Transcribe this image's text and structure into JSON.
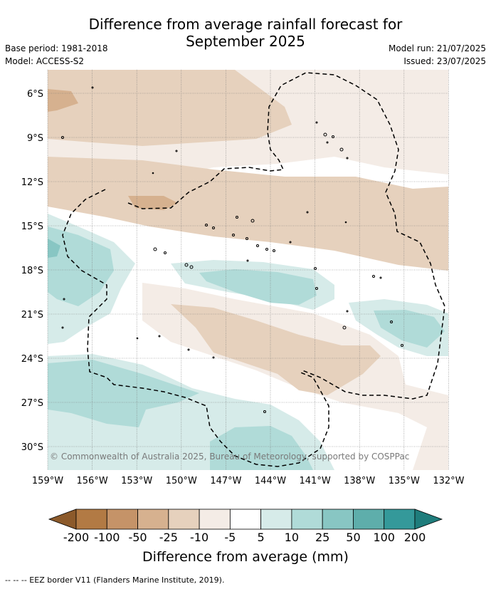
{
  "header": {
    "title_line1": "Difference from average rainfall forecast for",
    "title_line2": "September 2025",
    "base_period": "Base period: 1981-2018",
    "model": "Model: ACCESS-S2",
    "model_run": "Model run: 21/07/2025",
    "issued": "Issued: 23/07/2025"
  },
  "map": {
    "lat_labels": [
      "6°S",
      "9°S",
      "12°S",
      "15°S",
      "18°S",
      "21°S",
      "24°S",
      "27°S",
      "30°S"
    ],
    "lon_labels": [
      "159°W",
      "156°W",
      "153°W",
      "150°W",
      "147°W",
      "144°W",
      "141°W",
      "138°W",
      "135°W",
      "132°W"
    ],
    "copyright": "© Commonwealth of Australia 2025, Bureau of Meteorology, supported by COSPPac",
    "grid": true
  },
  "colorbar": {
    "title": "Difference from average (mm)",
    "tick_labels": [
      "-200",
      "-100",
      "-50",
      "-25",
      "-10",
      "-5",
      "5",
      "10",
      "25",
      "50",
      "100",
      "200"
    ],
    "colors": [
      "#8c5a2b",
      "#b27a44",
      "#c59368",
      "#d6b18f",
      "#e6d1bd",
      "#f4ece6",
      "#ffffff",
      "#d6ebe9",
      "#b0dbd8",
      "#88c6c3",
      "#5eaeab",
      "#34999a",
      "#1f7d7c"
    ]
  },
  "footer": {
    "legend_text": "--  --  -- EEZ border V11 (Flanders Marine Institute, 2019)."
  }
}
